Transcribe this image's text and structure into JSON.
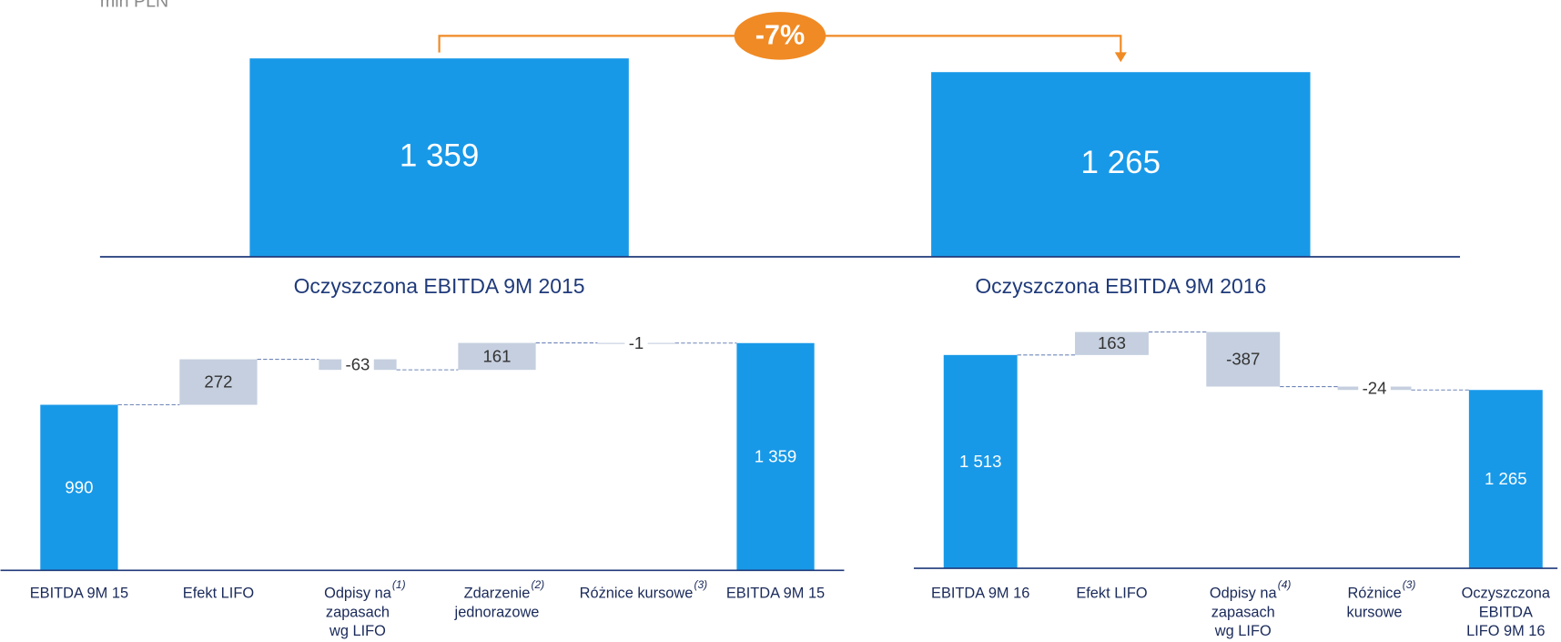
{
  "chart_data": [
    {
      "type": "bar",
      "unit": "mln PLN",
      "categories": [
        "Oczyszczona EBITDA 9M 2015",
        "Oczyszczona EBITDA 9M 2016"
      ],
      "values": [
        1359,
        1265
      ],
      "value_labels": [
        "1 359",
        "1 265"
      ],
      "color": "#1899e8",
      "ylim": [
        0,
        1500
      ],
      "annotation": "-7%",
      "annotation_color": "#f08a24"
    },
    {
      "type": "waterfall",
      "categories": [
        "EBITDA 9M 15",
        "Efekt LIFO",
        "Odpisy na\nzapasach\nwg LIFO",
        "Zdarzenie\njednorazowe",
        "Różnice kursowe",
        "EBITDA 9M 15"
      ],
      "category_notes": [
        null,
        null,
        "(1)",
        "(2)",
        "(3)",
        null
      ],
      "values": [
        990,
        272,
        -63,
        161,
        -1,
        1359
      ],
      "value_labels": [
        "990",
        "272",
        "-63",
        "161",
        "-1",
        "1 359"
      ],
      "totals": [
        true,
        false,
        false,
        false,
        false,
        true
      ],
      "total_color": "#1899e8",
      "delta_color": "#c5cfdf",
      "ylim": [
        0,
        1500
      ]
    },
    {
      "type": "waterfall",
      "categories": [
        "EBITDA 9M 16",
        "Efekt LIFO",
        "Odpisy na\nzapasach\nwg LIFO",
        "Różnice\nkursowe",
        "Oczyszczona\nEBITDA\nLIFO 9M 16"
      ],
      "category_notes": [
        null,
        null,
        "(4)",
        "(3)",
        null
      ],
      "values": [
        1513,
        163,
        -387,
        -24,
        1265
      ],
      "value_labels": [
        "1 513",
        "163",
        "-387",
        "-24",
        "1 265"
      ],
      "totals": [
        true,
        false,
        false,
        false,
        true
      ],
      "total_color": "#1899e8",
      "delta_color": "#c5cfdf",
      "ylim": [
        0,
        1800
      ]
    }
  ]
}
